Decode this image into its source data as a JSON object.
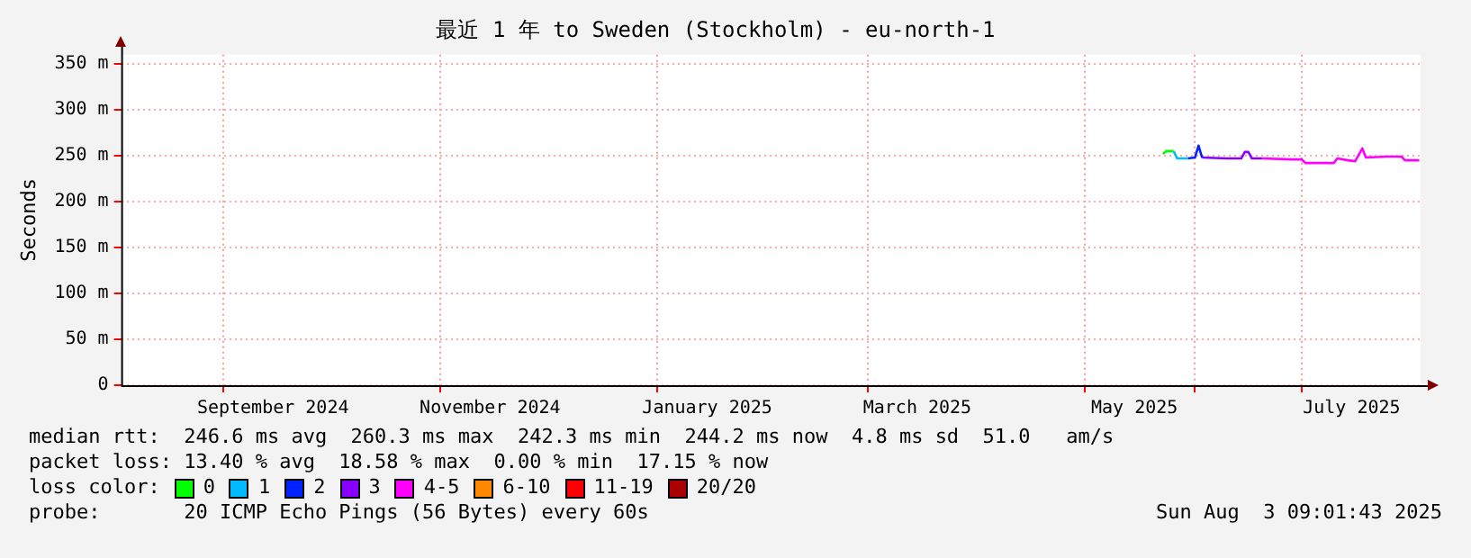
{
  "chart_data": {
    "type": "line",
    "title": "最近 1 年 to Sweden (Stockholm) - eu-north-1",
    "ylabel": "Seconds",
    "legend_title": "loss color:",
    "legend": "bottom",
    "grid": true,
    "xlim": [
      "2024-08-03T09:00",
      "2025-08-03T09:00"
    ],
    "xticks": [
      {
        "value": "2024-09-01",
        "label": null
      },
      {
        "value": "2024-09-15",
        "label": "September 2024"
      },
      {
        "value": "2024-11-01",
        "label": null
      },
      {
        "value": "2024-11-15",
        "label": "November 2024"
      },
      {
        "value": "2025-01-01",
        "label": null
      },
      {
        "value": "2025-01-15",
        "label": "January 2025"
      },
      {
        "value": "2025-03-01",
        "label": null
      },
      {
        "value": "2025-03-15",
        "label": "March 2025"
      },
      {
        "value": "2025-05-01",
        "label": null
      },
      {
        "value": "2025-05-15",
        "label": "May 2025"
      },
      {
        "value": "2025-06-01",
        "label": null
      },
      {
        "value": "2025-07-01",
        "label": null
      },
      {
        "value": "2025-07-15",
        "label": "July 2025"
      }
    ],
    "ylim": [
      0,
      360
    ],
    "yticks": [
      {
        "value": 0,
        "label": "0"
      },
      {
        "value": 50,
        "label": "50 m"
      },
      {
        "value": 100,
        "label": "100 m"
      },
      {
        "value": 150,
        "label": "150 m"
      },
      {
        "value": 200,
        "label": "200 m"
      },
      {
        "value": 250,
        "label": "250 m"
      },
      {
        "value": 300,
        "label": "300 m"
      },
      {
        "value": 350,
        "label": "350 m"
      }
    ],
    "series": [
      {
        "name": "0",
        "color": "#00ff00",
        "x": [
          "2025-05-23",
          "2025-05-24",
          "2025-05-26"
        ],
        "values": [
          252,
          255,
          255
        ]
      },
      {
        "name": "1",
        "color": "#00bbff",
        "x": [
          "2025-05-26",
          "2025-05-27",
          "2025-05-30"
        ],
        "values": [
          255,
          247,
          247
        ]
      },
      {
        "name": "2",
        "color": "#0022ff",
        "x": [
          "2025-05-30",
          "2025-06-01",
          "2025-06-02",
          "2025-06-03"
        ],
        "values": [
          247,
          248,
          261,
          248
        ]
      },
      {
        "name": "3",
        "color": "#8800ff",
        "x": [
          "2025-06-03",
          "2025-06-10",
          "2025-06-14",
          "2025-06-15",
          "2025-06-16",
          "2025-06-17",
          "2025-06-20"
        ],
        "values": [
          248,
          247,
          247,
          254,
          254,
          247,
          247
        ]
      },
      {
        "name": "4-5",
        "color": "#ff00ff",
        "x": [
          "2025-06-20",
          "2025-06-28",
          "2025-07-01",
          "2025-07-02",
          "2025-07-10",
          "2025-07-11",
          "2025-07-14",
          "2025-07-16",
          "2025-07-18",
          "2025-07-19",
          "2025-07-25",
          "2025-07-29",
          "2025-07-30",
          "2025-08-03"
        ],
        "values": [
          247,
          246,
          246,
          242,
          242,
          247,
          245,
          244,
          258,
          248,
          249,
          249,
          245,
          245
        ]
      },
      {
        "name": "6-10",
        "color": "#ff8800"
      },
      {
        "name": "11-19",
        "color": "#ff0000"
      },
      {
        "name": "20/20",
        "color": "#aa0000"
      }
    ],
    "annotations": [
      "median rtt:  246.6 ms avg  260.3 ms max  242.3 ms min  244.2 ms now  4.8 ms sd  51.0   am/s",
      "packet loss: 13.40 % avg  18.58 % max  0.00 % min  17.15 % now",
      "probe:       20 ICMP Echo Pings (56 Bytes) every 60s",
      "Sun Aug  3 09:01:43 2025"
    ]
  }
}
